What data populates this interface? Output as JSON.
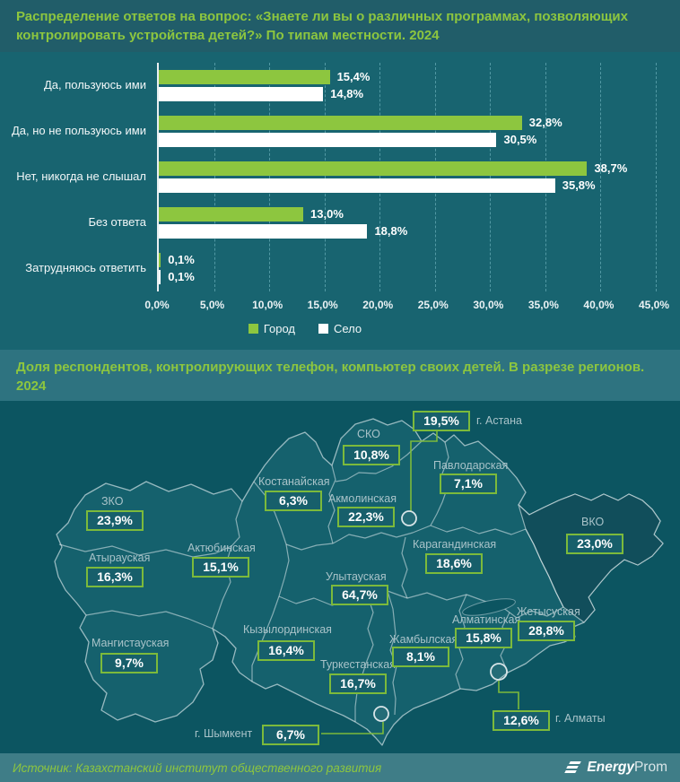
{
  "colors": {
    "accent_green": "#8DC63F",
    "header1_bg": "#215D69",
    "header2_bg": "#2E7380",
    "chart_bg": "#186470",
    "map_bg": "#0C5561",
    "land": "#15616D",
    "vko_land": "#114E5B",
    "badge_bg": "#175F6B",
    "badge_border": "#7CBA3B",
    "footer_bg": "#3F7D87",
    "white_series": "#FFFFFF"
  },
  "chart_data": {
    "type": "bar",
    "orientation": "horizontal",
    "title": "Распределение ответов на вопрос: «Знаете ли вы о различных программах, позволяющих контролировать устройства детей?» По типам местности. 2024",
    "categories": [
      "Да, пользуюсь ими",
      "Да, но не пользуюсь ими",
      "Нет, никогда не слышал",
      "Без ответа",
      "Затрудняюсь ответить"
    ],
    "series": [
      {
        "name": "Город",
        "color": "#8DC63F",
        "values": [
          15.4,
          32.8,
          38.7,
          13.0,
          0.1
        ],
        "labels": [
          "15,4%",
          "32,8%",
          "38,7%",
          "13,0%",
          "0,1%"
        ]
      },
      {
        "name": "Село",
        "color": "#FFFFFF",
        "values": [
          14.8,
          30.5,
          35.8,
          18.8,
          0.1
        ],
        "labels": [
          "14,8%",
          "30,5%",
          "35,8%",
          "18,8%",
          "0,1%"
        ]
      }
    ],
    "xlim": [
      0,
      45
    ],
    "ticks": [
      {
        "v": 0,
        "label": "0,0%"
      },
      {
        "v": 5,
        "label": "5,0%"
      },
      {
        "v": 10,
        "label": "10,0%"
      },
      {
        "v": 15,
        "label": "15,0%"
      },
      {
        "v": 20,
        "label": "20,0%"
      },
      {
        "v": 25,
        "label": "25,0%"
      },
      {
        "v": 30,
        "label": "30,0%"
      },
      {
        "v": 35,
        "label": "35,0%"
      },
      {
        "v": 40,
        "label": "40,0%"
      },
      {
        "v": 45,
        "label": "45,0%"
      }
    ],
    "grid": "dashed-vertical",
    "legend_position": "bottom"
  },
  "map": {
    "title": "Доля респондентов, контролирующих телефон, компьютер своих детей. В разрезе регионов. 2024",
    "regions": [
      {
        "id": "astana",
        "name": "г. Астана",
        "value": "19,5%",
        "badge": [
          460,
          11
        ],
        "label": [
          531,
          15
        ]
      },
      {
        "id": "sko",
        "name": "СКО",
        "value": "10,8%",
        "badge": [
          382,
          49
        ],
        "label": [
          398,
          30
        ]
      },
      {
        "id": "pavlodar",
        "name": "Павлодарская",
        "value": "7,1%",
        "badge": [
          490,
          81
        ],
        "label": [
          483,
          65
        ]
      },
      {
        "id": "kostanay",
        "name": "Костанайская",
        "value": "6,3%",
        "badge": [
          295,
          100
        ],
        "label": [
          288,
          83
        ]
      },
      {
        "id": "akmola",
        "name": "Акмолинская",
        "value": "22,3%",
        "badge": [
          376,
          118
        ],
        "label": [
          366,
          102
        ]
      },
      {
        "id": "zko",
        "name": "ЗКО",
        "value": "23,9%",
        "badge": [
          96,
          122
        ],
        "label": [
          113,
          105
        ]
      },
      {
        "id": "vko",
        "name": "ВКО",
        "value": "23,0%",
        "badge": [
          631,
          148
        ],
        "label": [
          648,
          128
        ]
      },
      {
        "id": "aktobe",
        "name": "Актюбинская",
        "value": "15,1%",
        "badge": [
          214,
          174
        ],
        "label": [
          209,
          157
        ]
      },
      {
        "id": "atyrau",
        "name": "Атырауская",
        "value": "16,3%",
        "badge": [
          96,
          185
        ],
        "label": [
          99,
          168
        ]
      },
      {
        "id": "karaganda",
        "name": "Карагандинская",
        "value": "18,6%",
        "badge": [
          474,
          170
        ],
        "label": [
          460,
          153
        ]
      },
      {
        "id": "ulytau",
        "name": "Улытауская",
        "value": "64,7%",
        "badge": [
          369,
          205
        ],
        "label": [
          363,
          189
        ]
      },
      {
        "id": "zhetysu",
        "name": "Жетысуская",
        "value": "28,8%",
        "badge": [
          577,
          245
        ],
        "label": [
          576,
          228
        ]
      },
      {
        "id": "almaty_region",
        "name": "Алматинская",
        "value": "15,8%",
        "badge": [
          507,
          253
        ],
        "label": [
          504,
          237
        ]
      },
      {
        "id": "zhambyl",
        "name": "Жамбылская",
        "value": "8,1%",
        "badge": [
          437,
          274
        ],
        "label": [
          434,
          259
        ]
      },
      {
        "id": "kyzylorda",
        "name": "Кызылординская",
        "value": "16,4%",
        "badge": [
          287,
          267
        ],
        "label": [
          271,
          248
        ]
      },
      {
        "id": "mangystau",
        "name": "Мангистауская",
        "value": "9,7%",
        "badge": [
          112,
          281
        ],
        "label": [
          102,
          263
        ]
      },
      {
        "id": "turkestan",
        "name": "Туркестанская",
        "value": "16,7%",
        "badge": [
          367,
          304
        ],
        "label": [
          357,
          287
        ]
      },
      {
        "id": "almaty_city",
        "name": "г. Алматы",
        "value": "12,6%",
        "badge": [
          549,
          345
        ],
        "label": [
          619,
          347
        ]
      },
      {
        "id": "shymkent",
        "name": "г. Шымкент",
        "value": "6,7%",
        "badge": [
          292,
          361
        ],
        "label": [
          217,
          364
        ]
      }
    ]
  },
  "footer": {
    "source": "Источник: Казахстанский институт общественного развития",
    "logo_bold": "Energy",
    "logo_light": "Prom"
  }
}
